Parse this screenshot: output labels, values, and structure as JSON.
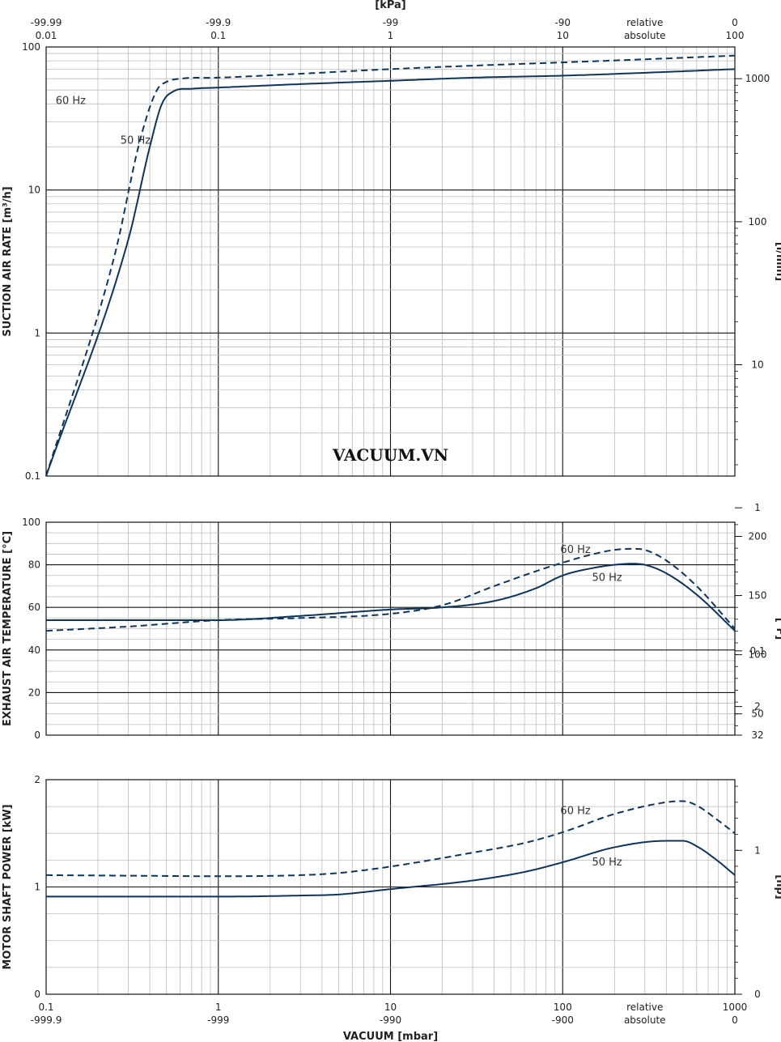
{
  "chart_data": [
    {
      "type": "line",
      "scale": {
        "x": "log",
        "y": "log"
      },
      "xlim": [
        0.1,
        1000
      ],
      "ylim": [
        0.1,
        100
      ],
      "ylabel": "SUCTION AIR RATE  [m³/h]",
      "ylabel_right": "[l/min]",
      "top_axis_label": "[kPa]",
      "top_ticks": [
        {
          "x": 0.1,
          "relative": "-99.99",
          "absolute": "0.01"
        },
        {
          "x": 1,
          "relative": "-99.9",
          "absolute": "0.1"
        },
        {
          "x": 10,
          "relative": "-99",
          "absolute": "1"
        },
        {
          "x": 100,
          "relative": "-90",
          "absolute": "10"
        },
        {
          "x": 300,
          "relative": "relative",
          "absolute": "absolute"
        },
        {
          "x": 1000,
          "relative": "0",
          "absolute": "100"
        }
      ],
      "y_ticks": [
        "0.1",
        "1",
        "10",
        "100"
      ],
      "y_right_ticks": [
        {
          "label": "1000",
          "value": 1000
        },
        {
          "label": "100",
          "value": 100
        },
        {
          "label": "10",
          "value": 10
        },
        {
          "label": "1",
          "value": 1
        },
        {
          "label": "0.1",
          "value": 0.1
        }
      ],
      "y_right_factor": 0.06,
      "watermark": "VACUUM.VN",
      "series": [
        {
          "name": "60 Hz",
          "style": "dashed",
          "x": [
            0.1,
            0.25,
            0.35,
            0.44,
            0.5,
            0.6,
            1,
            3,
            10,
            30,
            100,
            300,
            1000
          ],
          "y": [
            0.1,
            3.5,
            22,
            50,
            57,
            60,
            61,
            65,
            70,
            74,
            78,
            82,
            87
          ]
        },
        {
          "name": "50 Hz",
          "style": "solid",
          "x": [
            0.1,
            0.3,
            0.4,
            0.47,
            0.55,
            0.7,
            1,
            3,
            10,
            30,
            100,
            300,
            1000
          ],
          "y": [
            0.1,
            4.5,
            20,
            40,
            49,
            51,
            52,
            55,
            58,
            61,
            63,
            66,
            70
          ]
        }
      ]
    },
    {
      "type": "line",
      "scale": {
        "x": "log",
        "y": "linear"
      },
      "xlim": [
        0.1,
        1000
      ],
      "ylim": [
        0,
        100
      ],
      "ylabel": "EXHAUST AIR TEMPERATURE  [°C]",
      "ylabel_right": "[°F]",
      "y_ticks": [
        "0",
        "20",
        "40",
        "60",
        "80",
        "100"
      ],
      "y_right_ticks": [
        {
          "label": "200",
          "value": 200
        },
        {
          "label": "150",
          "value": 150
        },
        {
          "label": "100",
          "value": 100
        },
        {
          "label": "50",
          "value": 50
        },
        {
          "label": "32",
          "value": 32
        }
      ],
      "series": [
        {
          "name": "60 Hz",
          "style": "dashed",
          "x": [
            0.1,
            0.3,
            1,
            3,
            10,
            20,
            40,
            70,
            100,
            150,
            200,
            250,
            300,
            400,
            600,
            1000
          ],
          "y": [
            49,
            51,
            54,
            55,
            57,
            61,
            70,
            77,
            81,
            85,
            87,
            87.5,
            87,
            82,
            70,
            50
          ]
        },
        {
          "name": "50 Hz",
          "style": "solid",
          "x": [
            0.1,
            0.3,
            1,
            3,
            10,
            20,
            40,
            70,
            100,
            150,
            200,
            250,
            300,
            400,
            600,
            1000
          ],
          "y": [
            54,
            54,
            54,
            56,
            59,
            60,
            63,
            69,
            75,
            78.5,
            80,
            80.5,
            80,
            76,
            66,
            49
          ]
        }
      ]
    },
    {
      "type": "line",
      "scale": {
        "x": "log",
        "y": "linear"
      },
      "xlim": [
        0.1,
        1000
      ],
      "ylim": [
        0,
        2
      ],
      "xlabel": "VACUUM  [mbar]",
      "ylabel": "MOTOR SHAFT POWER  [kW]",
      "ylabel_right": "[hp]",
      "bottom_ticks": [
        {
          "x": 0.1,
          "top": "0.1",
          "bottom": "-999.9"
        },
        {
          "x": 1,
          "top": "1",
          "bottom": "-999"
        },
        {
          "x": 10,
          "top": "10",
          "bottom": "-990"
        },
        {
          "x": 100,
          "top": "100",
          "bottom": "-900"
        },
        {
          "x": 300,
          "top": "relative",
          "bottom": "absolute"
        },
        {
          "x": 1000,
          "top": "1000",
          "bottom": "0"
        }
      ],
      "y_ticks": [
        "0",
        "1",
        "2"
      ],
      "y_right_ticks": [
        {
          "label": "2",
          "value": 2
        },
        {
          "label": "1",
          "value": 1
        },
        {
          "label": "0",
          "value": 0
        }
      ],
      "y_right_factor": 1.341,
      "series": [
        {
          "name": "60 Hz",
          "style": "dashed",
          "x": [
            0.1,
            0.3,
            1,
            3,
            5,
            10,
            30,
            60,
            100,
            200,
            400,
            500,
            600,
            800,
            1000
          ],
          "y": [
            1.11,
            1.105,
            1.1,
            1.11,
            1.13,
            1.19,
            1.32,
            1.41,
            1.51,
            1.68,
            1.79,
            1.8,
            1.76,
            1.62,
            1.5
          ]
        },
        {
          "name": "50 Hz",
          "style": "solid",
          "x": [
            0.1,
            0.3,
            1,
            3,
            5,
            10,
            30,
            60,
            100,
            200,
            400,
            500,
            600,
            800,
            1000
          ],
          "y": [
            0.91,
            0.91,
            0.91,
            0.92,
            0.93,
            0.98,
            1.06,
            1.14,
            1.23,
            1.37,
            1.43,
            1.43,
            1.38,
            1.24,
            1.11
          ]
        }
      ]
    }
  ]
}
